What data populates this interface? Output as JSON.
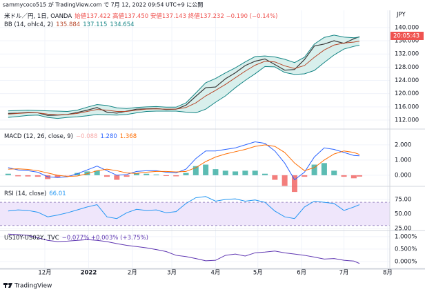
{
  "publisher": "sammycoco515 が TradingView.com で 7月 12, 2022 09:54 UTC+9 に公開",
  "unit": "JPY",
  "countdown": "20:05:43",
  "footer": "TradingView",
  "x_axis": {
    "x": [
      -26,
      -19,
      -12,
      -5,
      2,
      9,
      16,
      23,
      30,
      37,
      44,
      51,
      58,
      65,
      72,
      79,
      86,
      93,
      100,
      107,
      114,
      121,
      128,
      135,
      142,
      149,
      156,
      163,
      170,
      177,
      184,
      191,
      198,
      205,
      212,
      219,
      223
    ],
    "xlim": [
      -31.8,
      244.5
    ],
    "xticks": [
      {
        "value": 0,
        "label": "12月"
      },
      {
        "value": 31,
        "label": "2022",
        "bold": true
      },
      {
        "value": 62,
        "label": "2月"
      },
      {
        "value": 90,
        "label": "3月"
      },
      {
        "value": 121,
        "label": "4月"
      },
      {
        "value": 151,
        "label": "5月"
      },
      {
        "value": 182,
        "label": "6月"
      },
      {
        "value": 212,
        "label": "7月"
      },
      {
        "value": 243,
        "label": "8月"
      }
    ]
  },
  "chart_data": [
    {
      "type": "line",
      "legend_lines": [
        [
          {
            "text": "米ドル／円, 1日, OANDA",
            "color": "#131722"
          },
          {
            "text": "始値137.422 高値137.450 安値137.143 終値137.232 −0.190 (−0.14%)",
            "color": "#ef5350"
          }
        ],
        [
          {
            "text": "BB (14, ohlc4, 2)",
            "color": "#131722"
          },
          {
            "text": "135.884",
            "color": "#b7472a"
          },
          {
            "text": "137.115",
            "color": "#138484"
          },
          {
            "text": "134.654",
            "color": "#138484"
          }
        ]
      ],
      "ylim": [
        109.7,
        145.2
      ],
      "yticks": [
        {
          "value": 112,
          "label": "112.000"
        },
        {
          "value": 116,
          "label": "116.000"
        },
        {
          "value": 120,
          "label": "120.000"
        },
        {
          "value": 124,
          "label": "124.000"
        },
        {
          "value": 128,
          "label": "128.000"
        },
        {
          "value": 132,
          "label": "132.000"
        },
        {
          "value": 136,
          "label": "136.000"
        },
        {
          "value": 140,
          "label": "140.000"
        }
      ],
      "band_fill": "#d8efec",
      "series": [
        {
          "color": "#3a3a3a",
          "values": [
            114.0,
            114.1,
            114.3,
            114.2,
            113.4,
            113.5,
            113.7,
            114.3,
            115.0,
            115.8,
            114.4,
            114.1,
            114.7,
            115.3,
            115.4,
            115.5,
            115.2,
            115.3,
            116.5,
            119.2,
            121.8,
            122.0,
            124.5,
            126.3,
            128.5,
            129.8,
            130.5,
            128.8,
            127.1,
            127.3,
            130.3,
            134.4,
            135.0,
            136.0,
            135.2,
            136.6,
            137.232
          ]
        },
        {
          "color": "#138484",
          "values": [
            114.8,
            114.9,
            115.0,
            114.9,
            114.8,
            114.7,
            114.6,
            115.0,
            115.9,
            116.7,
            116.4,
            115.7,
            115.5,
            115.8,
            116.0,
            116.1,
            115.9,
            115.9,
            117.2,
            120.2,
            123.3,
            124.6,
            126.3,
            127.8,
            129.6,
            131.2,
            131.4,
            131.1,
            130.4,
            129.4,
            131.0,
            135.0,
            137.0,
            137.7,
            137.1,
            136.9,
            137.115
          ]
        },
        {
          "color": "#b7472a",
          "values": [
            113.8,
            114.0,
            114.2,
            114.2,
            113.8,
            113.6,
            113.7,
            114.0,
            114.6,
            115.2,
            115.0,
            114.6,
            114.6,
            115.0,
            115.3,
            115.4,
            115.3,
            115.3,
            115.8,
            117.2,
            119.3,
            121.0,
            122.8,
            124.8,
            126.8,
            128.6,
            129.8,
            129.6,
            128.4,
            127.6,
            128.5,
            131.0,
            133.2,
            134.7,
            135.3,
            135.6,
            135.884
          ]
        },
        {
          "color": "#138484",
          "values": [
            112.8,
            113.1,
            113.4,
            113.5,
            112.8,
            112.5,
            112.8,
            113.0,
            113.3,
            113.7,
            113.6,
            113.5,
            113.7,
            114.2,
            114.6,
            114.7,
            114.7,
            114.7,
            114.4,
            114.2,
            115.3,
            117.4,
            119.3,
            121.8,
            124.0,
            126.0,
            128.2,
            128.1,
            126.4,
            125.8,
            126.0,
            127.0,
            129.4,
            131.7,
            133.5,
            134.3,
            134.654
          ]
        }
      ]
    },
    {
      "type": "macd",
      "legend_lines": [
        [
          {
            "text": "MACD (12, 26, close, 9)",
            "color": "#131722"
          },
          {
            "text": "−0.088",
            "color": "#f7a9a8"
          },
          {
            "text": "1.280",
            "color": "#2962ff"
          },
          {
            "text": "1.368",
            "color": "#ff6d00"
          }
        ]
      ],
      "ylim": [
        -0.64,
        2.95
      ],
      "yticks": [
        {
          "value": 0,
          "label": "0.000"
        },
        {
          "value": 1,
          "label": "1.000"
        },
        {
          "value": 2,
          "label": "2.000"
        }
      ],
      "series": [
        {
          "kind": "histogram",
          "color": "#26a69a",
          "color_negative": "#ef5350",
          "values": [
            0.1,
            -0.07,
            -0.08,
            -0.1,
            -0.25,
            -0.15,
            -0.02,
            0.15,
            0.25,
            0.3,
            -0.1,
            -0.3,
            -0.1,
            0.13,
            0.1,
            0.05,
            -0.05,
            -0.07,
            0.15,
            0.6,
            0.7,
            0.4,
            0.3,
            0.25,
            0.3,
            0.3,
            0.1,
            -0.3,
            -0.7,
            -1.1,
            -0.1,
            0.7,
            0.8,
            0.3,
            -0.1,
            -0.2,
            -0.088
          ]
        },
        {
          "kind": "line",
          "color": "#2962ff",
          "values": [
            0.5,
            0.35,
            0.3,
            0.2,
            -0.1,
            -0.15,
            -0.1,
            0.1,
            0.35,
            0.6,
            0.3,
            0.0,
            0.05,
            0.25,
            0.3,
            0.3,
            0.2,
            0.15,
            0.4,
            1.1,
            1.6,
            1.6,
            1.7,
            1.8,
            2.0,
            2.2,
            2.1,
            1.6,
            0.8,
            -0.3,
            0.2,
            1.2,
            1.8,
            1.7,
            1.5,
            1.3,
            1.28
          ]
        },
        {
          "kind": "line",
          "color": "#ff6d00",
          "values": [
            0.4,
            0.42,
            0.38,
            0.3,
            0.15,
            0.0,
            -0.08,
            -0.05,
            0.1,
            0.3,
            0.4,
            0.3,
            0.15,
            0.12,
            0.2,
            0.25,
            0.25,
            0.22,
            0.25,
            0.5,
            0.9,
            1.2,
            1.4,
            1.55,
            1.7,
            1.9,
            2.0,
            1.9,
            1.5,
            0.8,
            0.3,
            0.5,
            1.0,
            1.4,
            1.6,
            1.5,
            1.368
          ]
        }
      ]
    },
    {
      "type": "line",
      "legend_lines": [
        [
          {
            "text": "RSI (14, close)",
            "color": "#131722"
          },
          {
            "text": "66.01",
            "color": "#2196f3"
          }
        ]
      ],
      "ylim": [
        23.8,
        95.2
      ],
      "yticks": [
        {
          "value": 25,
          "label": "25.00"
        },
        {
          "value": 50,
          "label": "50.00"
        },
        {
          "value": 75,
          "label": "75.00"
        }
      ],
      "band": [
        30,
        70
      ],
      "band_fill": "#efe6fb",
      "series": [
        {
          "color": "#2196f3",
          "values": [
            55,
            57,
            56,
            53,
            45,
            48,
            52,
            57,
            62,
            66,
            45,
            42,
            52,
            58,
            56,
            57,
            52,
            54,
            68,
            78,
            80,
            72,
            75,
            76,
            72,
            74,
            70,
            55,
            45,
            42,
            62,
            72,
            70,
            68,
            56,
            62,
            66.01
          ]
        }
      ]
    },
    {
      "type": "line",
      "legend_lines": [
        [
          {
            "text": "US10Y-US02Y, TVC",
            "color": "#131722"
          },
          {
            "text": "−0.077% +0.003% (+3.75%)",
            "color": "#5e35b1"
          }
        ]
      ],
      "ylim": [
        -0.25,
        1.19
      ],
      "yticks": [
        {
          "value": 0,
          "label": "0.000%"
        },
        {
          "value": 0.5,
          "label": "0.500%"
        },
        {
          "value": 1,
          "label": "1.000%"
        }
      ],
      "series": [
        {
          "color": "#5e35b1",
          "values": [
            1.1,
            1.08,
            1.05,
            0.95,
            0.85,
            0.8,
            0.82,
            0.85,
            0.88,
            0.85,
            0.8,
            0.72,
            0.65,
            0.6,
            0.55,
            0.48,
            0.4,
            0.25,
            0.2,
            0.12,
            0.03,
            0.05,
            0.25,
            0.3,
            0.22,
            0.35,
            0.38,
            0.42,
            0.35,
            0.3,
            0.25,
            0.18,
            0.1,
            0.12,
            0.05,
            0.02,
            -0.077
          ]
        }
      ]
    }
  ]
}
